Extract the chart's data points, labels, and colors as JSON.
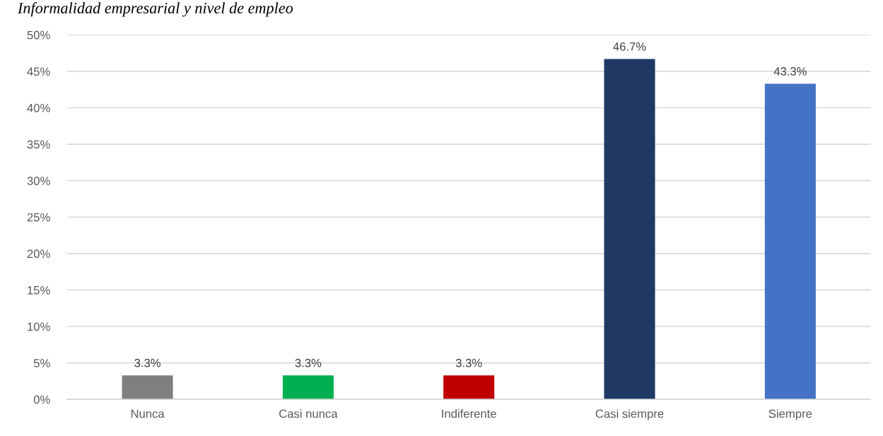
{
  "chart_data": {
    "type": "bar",
    "title": "Informalidad empresarial y nivel de empleo",
    "categories": [
      "Nunca",
      "Casi nunca",
      "Indiferente",
      "Casi siempre",
      "Siempre"
    ],
    "values": [
      3.3,
      3.3,
      3.3,
      46.7,
      43.3
    ],
    "colors": [
      "#7f7f7f",
      "#00b050",
      "#c00000",
      "#1f3864",
      "#4472c4"
    ],
    "value_labels": [
      "3.3%",
      "3.3%",
      "3.3%",
      "46.7%",
      "43.3%"
    ],
    "ylim": [
      0,
      50
    ],
    "yticks": [
      {
        "value": 0,
        "label": "0%"
      },
      {
        "value": 5,
        "label": "5%"
      },
      {
        "value": 10,
        "label": "10%"
      },
      {
        "value": 15,
        "label": "15%"
      },
      {
        "value": 20,
        "label": "20%"
      },
      {
        "value": 25,
        "label": "25%"
      },
      {
        "value": 30,
        "label": "30%"
      },
      {
        "value": 35,
        "label": "35%"
      },
      {
        "value": 40,
        "label": "40%"
      },
      {
        "value": 45,
        "label": "45%"
      },
      {
        "value": 50,
        "label": "50%"
      }
    ],
    "grid": "y"
  }
}
